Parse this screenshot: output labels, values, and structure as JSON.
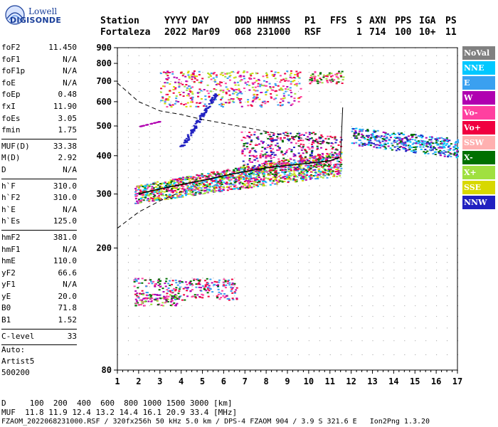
{
  "logo": {
    "top": "Lowell",
    "bottom": "DIGISONDE"
  },
  "header": {
    "labels": [
      {
        "text": "Station",
        "col": 0
      },
      {
        "text": "YYYY DAY",
        "col": 90
      },
      {
        "text": "DDD HHMMSS",
        "col": 189
      },
      {
        "text": "P1",
        "col": 287
      },
      {
        "text": "FFS",
        "col": 323
      },
      {
        "text": "S",
        "col": 360
      },
      {
        "text": "AXN",
        "col": 378
      },
      {
        "text": "PPS",
        "col": 414
      },
      {
        "text": "IGA",
        "col": 448
      },
      {
        "text": "PS",
        "col": 485
      }
    ],
    "values": [
      {
        "text": "Fortaleza",
        "col": 0
      },
      {
        "text": "2022 Mar09",
        "col": 90
      },
      {
        "text": "068 231000",
        "col": 189
      },
      {
        "text": "RSF",
        "col": 287
      },
      {
        "text": "1",
        "col": 360
      },
      {
        "text": "714",
        "col": 378
      },
      {
        "text": "100",
        "col": 414
      },
      {
        "text": "10+",
        "col": 448
      },
      {
        "text": "11",
        "col": 485
      }
    ]
  },
  "parameters": [
    {
      "key": "foF2",
      "value": "11.450"
    },
    {
      "key": "foF1",
      "value": "N/A"
    },
    {
      "key": "foF1p",
      "value": "N/A"
    },
    {
      "key": "foE",
      "value": "N/A"
    },
    {
      "key": "foEp",
      "value": "0.48"
    },
    {
      "key": "fxI",
      "value": "11.90"
    },
    {
      "key": "foEs",
      "value": "3.05"
    },
    {
      "key": "fmin",
      "value": "1.75"
    },
    {
      "sep": true
    },
    {
      "key": "MUF(D)",
      "value": "33.38"
    },
    {
      "key": "M(D)",
      "value": "2.92"
    },
    {
      "key": "D",
      "value": "N/A"
    },
    {
      "sep": true
    },
    {
      "key": "h`F",
      "value": "310.0"
    },
    {
      "key": "h`F2",
      "value": "310.0"
    },
    {
      "key": "h`E",
      "value": "N/A"
    },
    {
      "key": "h`Es",
      "value": "125.0"
    },
    {
      "sep": true
    },
    {
      "key": "hmF2",
      "value": "381.0"
    },
    {
      "key": "hmF1",
      "value": "N/A"
    },
    {
      "key": "hmE",
      "value": "110.0"
    },
    {
      "key": "yF2",
      "value": "66.6"
    },
    {
      "key": "yF1",
      "value": "N/A"
    },
    {
      "key": "yE",
      "value": "20.0"
    },
    {
      "key": "B0",
      "value": "71.8"
    },
    {
      "key": "B1",
      "value": "1.52"
    },
    {
      "sep": true
    },
    {
      "key": "C-level",
      "value": "33"
    },
    {
      "sep": true
    }
  ],
  "autoscaling": {
    "line1": "Auto:",
    "line2": "Artist5",
    "line3": "500200"
  },
  "legend": [
    {
      "label": "NoVal",
      "color": "#808080"
    },
    {
      "label": "NNE",
      "color": "#00c8ff"
    },
    {
      "label": "E",
      "color": "#3aa0f0"
    },
    {
      "label": "W",
      "color": "#b000b0"
    },
    {
      "label": "Vo-",
      "color": "#ff40a0"
    },
    {
      "label": "Vo+",
      "color": "#f00040"
    },
    {
      "label": "SSW",
      "color": "#ffb0b0"
    },
    {
      "label": "X-",
      "color": "#007000"
    },
    {
      "label": "X+",
      "color": "#a0e040"
    },
    {
      "label": "SSE",
      "color": "#d8d800"
    },
    {
      "label": "NNW",
      "color": "#2020c0"
    }
  ],
  "footer": {
    "line1": "D     100  200  400  600  800 1000 1500 3000 [km]",
    "line2": "MUF  11.8 11.9 12.4 13.2 14.4 16.1 20.9 33.4 [MHz]",
    "line3": "FZAOM_2022068231000.RSF / 320fx256h 50 kHz 5.0 km / DPS-4 FZAOM 904 / 3.9 S 321.6 E   Ion2Png 1.3.20"
  },
  "chart_data": {
    "type": "scatter",
    "title": "",
    "xlabel": "",
    "ylabel": "",
    "xlim": [
      1,
      17
    ],
    "ylim": [
      80,
      900
    ],
    "x_ticks": [
      1,
      2,
      3,
      4,
      5,
      6,
      7,
      8,
      9,
      10,
      11,
      12,
      13,
      14,
      15,
      16,
      17
    ],
    "y_ticks": [
      80,
      200,
      300,
      400,
      500,
      600,
      700,
      800,
      900
    ],
    "y_scale": "log",
    "grid": true,
    "legend_position": "right",
    "clusters": [
      {
        "name": "Es",
        "x": [
          1.75,
          6.6
        ],
        "y": [
          136,
          160
        ],
        "colors": [
          "#f00040",
          "#ff40a0",
          "#b000b0",
          "#3aa0f0",
          "#007000"
        ]
      },
      {
        "name": "Es-low",
        "x": [
          1.8,
          3.8
        ],
        "y": [
          130,
          142
        ],
        "colors": [
          "#b000b0",
          "#ff40a0",
          "#007000",
          "#a0e040"
        ]
      },
      {
        "name": "F-trace",
        "x": [
          1.8,
          11.5
        ],
        "y": [
          280,
          420
        ],
        "colors": [
          "#3aa0f0",
          "#00c8ff",
          "#f00040",
          "#ff40a0",
          "#b000b0",
          "#007000",
          "#a0e040",
          "#d8d800"
        ]
      },
      {
        "name": "F-upper",
        "x": [
          6.8,
          11.5
        ],
        "y": [
          360,
          480
        ],
        "colors": [
          "#f00040",
          "#b000b0",
          "#ff40a0",
          "#2020c0",
          "#007000"
        ]
      },
      {
        "name": "spread-east",
        "x": [
          12.0,
          17.0
        ],
        "y": [
          380,
          500
        ],
        "colors": [
          "#3aa0f0",
          "#00c8ff",
          "#b000b0",
          "#007000",
          "#2020c0"
        ]
      },
      {
        "name": "multi-hop",
        "x": [
          3.0,
          9.6
        ],
        "y": [
          580,
          760
        ],
        "colors": [
          "#ff40a0",
          "#f00040",
          "#b000b0",
          "#a0e040",
          "#d8d800",
          "#3aa0f0"
        ]
      },
      {
        "name": "upper-right",
        "x": [
          10.0,
          11.6
        ],
        "y": [
          690,
          760
        ],
        "colors": [
          "#f00040",
          "#007000",
          "#a0e040",
          "#ff40a0"
        ]
      }
    ],
    "nnw_trace": {
      "x": [
        4.0,
        5.6
      ],
      "y": [
        430,
        640
      ],
      "color": "#2020c0"
    },
    "w_streak": {
      "x": [
        2.0,
        3.0
      ],
      "y": [
        500,
        520
      ],
      "color": "#b000b0"
    },
    "dashed_curve": {
      "x": [
        1,
        2,
        3,
        4,
        5,
        6,
        7,
        8,
        9,
        10,
        11
      ],
      "y": [
        690,
        600,
        560,
        545,
        525,
        510,
        495,
        480,
        465,
        452,
        440
      ]
    },
    "dashed_lower": {
      "x": [
        1,
        2,
        3,
        4
      ],
      "y": [
        232,
        262,
        285,
        305
      ]
    },
    "profile_line": {
      "x": [
        2,
        3,
        4,
        5,
        6,
        7,
        8,
        9,
        10,
        11,
        11.45
      ],
      "y": [
        300,
        312,
        322,
        332,
        344,
        355,
        365,
        372,
        378,
        385,
        395
      ]
    },
    "profile_vertical": {
      "x": [
        11.5,
        11.6
      ],
      "y": [
        395,
        575
      ]
    }
  }
}
